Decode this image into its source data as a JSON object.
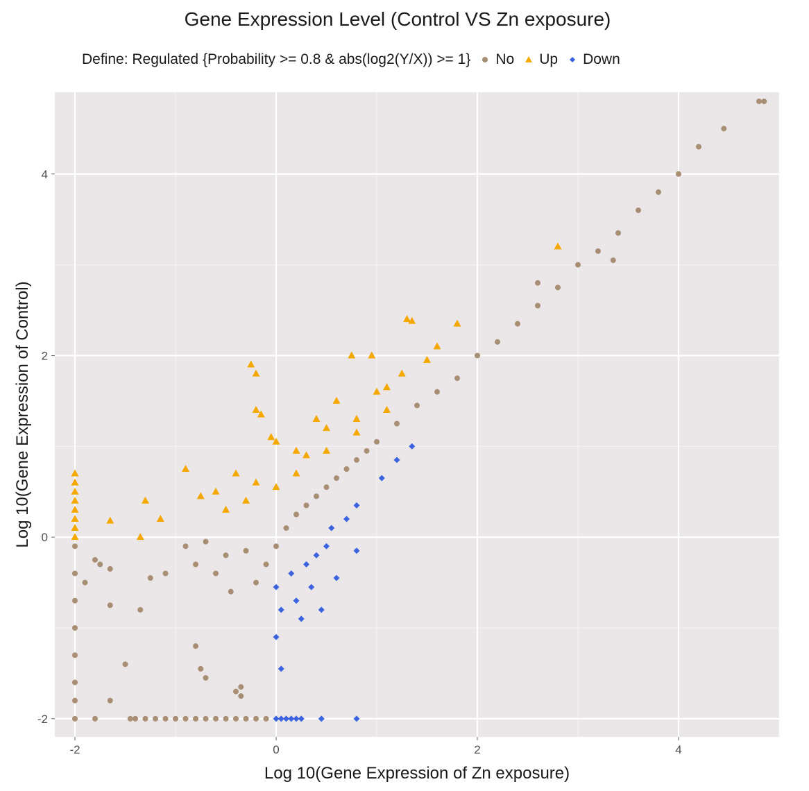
{
  "chart_data": {
    "type": "scatter",
    "title": "Gene Expression Level (Control VS Zn exposure)",
    "xlabel": "Log 10(Gene Expression of Zn exposure)",
    "ylabel": "Log 10(Gene Expression of Control)",
    "xlim": [
      -2.2,
      5.0
    ],
    "ylim": [
      -2.2,
      4.9
    ],
    "x_ticks": [
      -2,
      0,
      2,
      4
    ],
    "y_ticks": [
      -2,
      0,
      2,
      4
    ],
    "x_tick_labels": [
      "-2",
      "0",
      "2",
      "4"
    ],
    "y_tick_labels": [
      "-2",
      "0",
      "2",
      "4"
    ],
    "grid": true,
    "legend": {
      "position": "top",
      "title": "Define: Regulated {Probability >= 0.8 & abs(log2(Y/X)) >= 1}",
      "entries": [
        "No",
        "Up",
        "Down"
      ]
    },
    "colors": {
      "No": "#a88e73",
      "Up": "#f5a800",
      "Down": "#3b63e0",
      "panel": "#ebe7e8"
    },
    "series": [
      {
        "name": "No",
        "marker": "circle",
        "points": [
          [
            -2.0,
            -0.1
          ],
          [
            -2.0,
            -0.4
          ],
          [
            -2.0,
            -0.7
          ],
          [
            -2.0,
            -1.0
          ],
          [
            -2.0,
            -1.3
          ],
          [
            -2.0,
            -1.6
          ],
          [
            -2.0,
            -1.8
          ],
          [
            -2.0,
            -2.0
          ],
          [
            -1.9,
            -0.5
          ],
          [
            -1.8,
            -0.25
          ],
          [
            -1.75,
            -0.3
          ],
          [
            -1.65,
            -0.35
          ],
          [
            -1.65,
            -0.75
          ],
          [
            -1.5,
            -1.4
          ],
          [
            -1.65,
            -1.8
          ],
          [
            -1.8,
            -2.0
          ],
          [
            -1.45,
            -2.0
          ],
          [
            -1.4,
            -2.0
          ],
          [
            -1.3,
            -2.0
          ],
          [
            -1.2,
            -2.0
          ],
          [
            -1.1,
            -2.0
          ],
          [
            -1.0,
            -2.0
          ],
          [
            -0.9,
            -2.0
          ],
          [
            -0.8,
            -2.0
          ],
          [
            -0.7,
            -2.0
          ],
          [
            -0.6,
            -2.0
          ],
          [
            -0.5,
            -2.0
          ],
          [
            -0.4,
            -2.0
          ],
          [
            -0.3,
            -2.0
          ],
          [
            -0.2,
            -2.0
          ],
          [
            -0.1,
            -2.0
          ],
          [
            -1.25,
            -0.45
          ],
          [
            -1.35,
            -0.8
          ],
          [
            -1.1,
            -0.4
          ],
          [
            -0.8,
            -1.2
          ],
          [
            -0.75,
            -1.45
          ],
          [
            -0.7,
            -1.55
          ],
          [
            -0.35,
            -1.65
          ],
          [
            -0.35,
            -1.75
          ],
          [
            -0.4,
            -1.7
          ],
          [
            -0.9,
            -0.1
          ],
          [
            -0.8,
            -0.3
          ],
          [
            -0.7,
            -0.05
          ],
          [
            -0.6,
            -0.4
          ],
          [
            -0.5,
            -0.2
          ],
          [
            -0.45,
            -0.6
          ],
          [
            -0.3,
            -0.15
          ],
          [
            -0.2,
            -0.5
          ],
          [
            -0.1,
            -0.3
          ],
          [
            0.0,
            -0.1
          ],
          [
            0.1,
            0.1
          ],
          [
            0.2,
            0.25
          ],
          [
            0.3,
            0.35
          ],
          [
            0.4,
            0.45
          ],
          [
            0.5,
            0.55
          ],
          [
            0.6,
            0.65
          ],
          [
            0.7,
            0.75
          ],
          [
            0.8,
            0.85
          ],
          [
            0.9,
            0.95
          ],
          [
            1.0,
            1.05
          ],
          [
            1.2,
            1.25
          ],
          [
            1.4,
            1.45
          ],
          [
            1.6,
            1.6
          ],
          [
            1.8,
            1.75
          ],
          [
            2.0,
            2.0
          ],
          [
            2.2,
            2.15
          ],
          [
            2.4,
            2.35
          ],
          [
            2.6,
            2.55
          ],
          [
            2.8,
            2.75
          ],
          [
            3.0,
            3.0
          ],
          [
            3.2,
            3.15
          ],
          [
            3.4,
            3.35
          ],
          [
            3.6,
            3.6
          ],
          [
            3.8,
            3.8
          ],
          [
            4.0,
            4.0
          ],
          [
            4.2,
            4.3
          ],
          [
            4.45,
            4.5
          ],
          [
            4.8,
            4.8
          ],
          [
            4.85,
            4.8
          ],
          [
            3.35,
            3.05
          ],
          [
            2.6,
            2.8
          ]
        ]
      },
      {
        "name": "Up",
        "marker": "triangle",
        "points": [
          [
            -2.0,
            0.7
          ],
          [
            -2.0,
            0.6
          ],
          [
            -2.0,
            0.5
          ],
          [
            -2.0,
            0.4
          ],
          [
            -2.0,
            0.3
          ],
          [
            -2.0,
            0.2
          ],
          [
            -2.0,
            0.1
          ],
          [
            -2.0,
            0.0
          ],
          [
            -1.65,
            0.18
          ],
          [
            -1.3,
            0.4
          ],
          [
            -1.35,
            0.0
          ],
          [
            -1.15,
            0.2
          ],
          [
            -0.9,
            0.75
          ],
          [
            -0.75,
            0.45
          ],
          [
            -0.6,
            0.5
          ],
          [
            -0.4,
            0.7
          ],
          [
            -0.2,
            0.6
          ],
          [
            -0.25,
            1.9
          ],
          [
            -0.2,
            1.8
          ],
          [
            -0.2,
            1.4
          ],
          [
            -0.15,
            1.35
          ],
          [
            -0.05,
            1.1
          ],
          [
            0.0,
            1.05
          ],
          [
            0.2,
            0.95
          ],
          [
            0.3,
            0.9
          ],
          [
            0.4,
            1.3
          ],
          [
            0.5,
            1.2
          ],
          [
            0.6,
            1.5
          ],
          [
            0.75,
            2.0
          ],
          [
            0.8,
            1.3
          ],
          [
            0.95,
            2.0
          ],
          [
            1.0,
            1.6
          ],
          [
            1.1,
            1.65
          ],
          [
            1.25,
            1.8
          ],
          [
            1.3,
            2.4
          ],
          [
            1.35,
            2.38
          ],
          [
            1.6,
            2.1
          ],
          [
            1.8,
            2.35
          ],
          [
            2.8,
            3.2
          ],
          [
            -0.5,
            0.3
          ],
          [
            -0.3,
            0.4
          ],
          [
            0.0,
            0.55
          ],
          [
            0.2,
            0.7
          ],
          [
            0.5,
            0.95
          ],
          [
            0.8,
            1.15
          ],
          [
            1.1,
            1.4
          ],
          [
            1.5,
            1.95
          ]
        ]
      },
      {
        "name": "Down",
        "marker": "diamond",
        "points": [
          [
            0.0,
            -0.55
          ],
          [
            0.05,
            -0.8
          ],
          [
            0.0,
            -1.1
          ],
          [
            0.05,
            -1.45
          ],
          [
            0.2,
            -0.7
          ],
          [
            0.25,
            -0.9
          ],
          [
            0.45,
            -0.8
          ],
          [
            0.15,
            -0.4
          ],
          [
            0.3,
            -0.3
          ],
          [
            0.4,
            -0.2
          ],
          [
            0.5,
            -0.1
          ],
          [
            0.55,
            0.1
          ],
          [
            0.7,
            0.2
          ],
          [
            0.8,
            0.35
          ],
          [
            1.05,
            0.65
          ],
          [
            1.2,
            0.85
          ],
          [
            1.35,
            1.0
          ],
          [
            0.8,
            -0.15
          ],
          [
            0.6,
            -0.45
          ],
          [
            0.35,
            -0.55
          ],
          [
            0.0,
            -2.0
          ],
          [
            0.05,
            -2.0
          ],
          [
            0.1,
            -2.0
          ],
          [
            0.15,
            -2.0
          ],
          [
            0.2,
            -2.0
          ],
          [
            0.25,
            -2.0
          ],
          [
            0.45,
            -2.0
          ],
          [
            0.8,
            -2.0
          ]
        ]
      }
    ]
  }
}
